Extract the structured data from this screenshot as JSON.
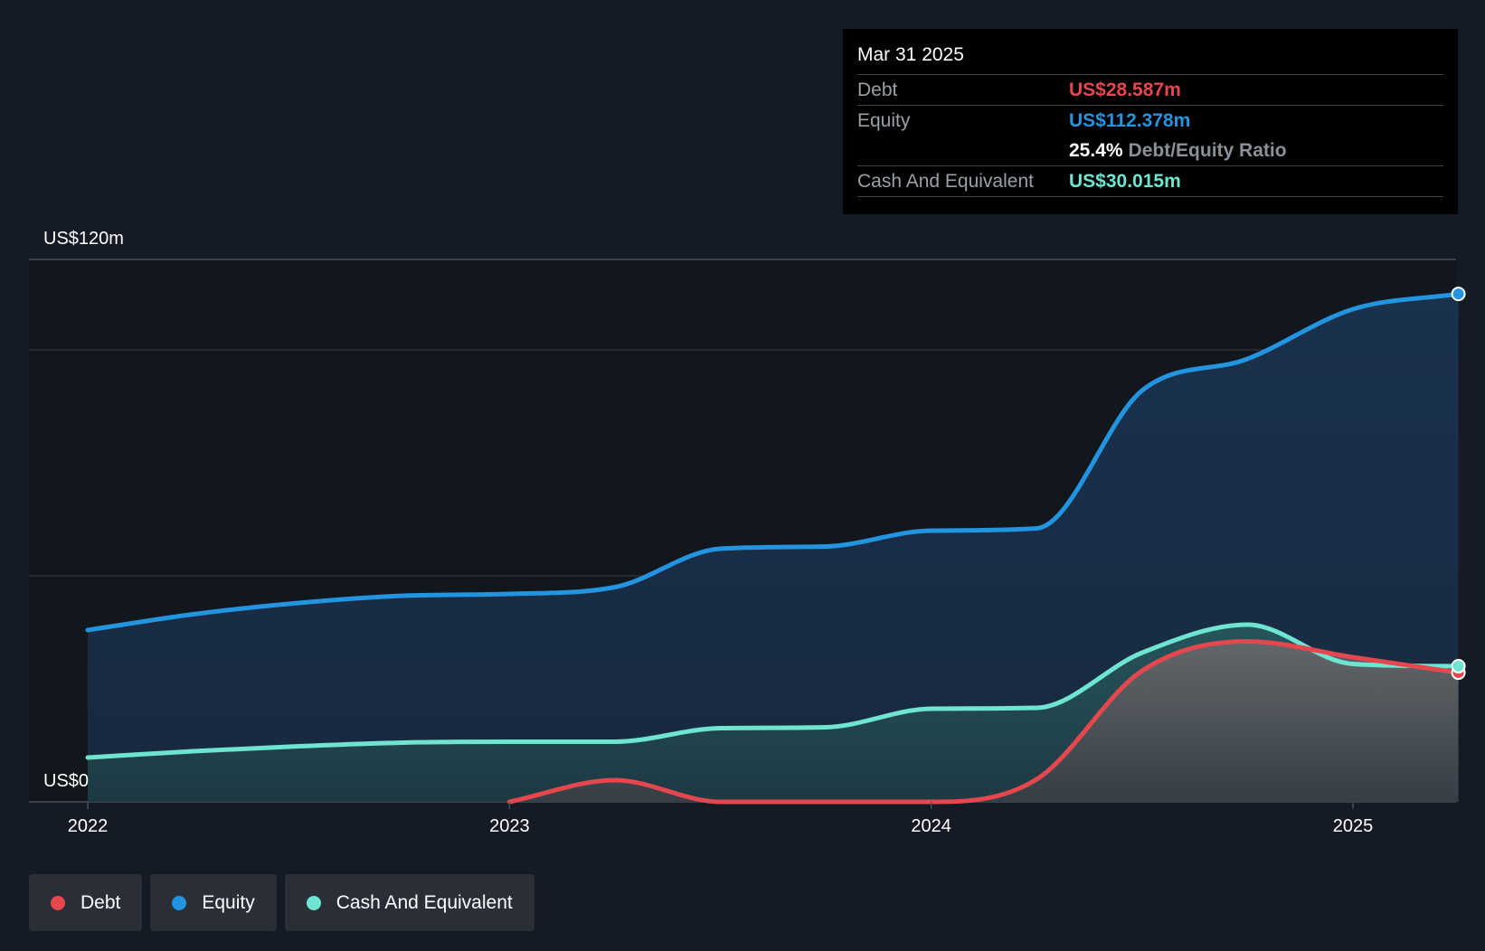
{
  "tooltip": {
    "date": "Mar 31 2025",
    "debt_label": "Debt",
    "debt_value": "US$28.587m",
    "equity_label": "Equity",
    "equity_value": "US$112.378m",
    "ratio_pct": "25.4%",
    "ratio_label": "Debt/Equity Ratio",
    "cash_label": "Cash And Equivalent",
    "cash_value": "US$30.015m"
  },
  "legend": {
    "debt": "Debt",
    "equity": "Equity",
    "cash": "Cash And Equivalent"
  },
  "colors": {
    "debt": "#e5474e",
    "equity": "#2394df",
    "cash": "#6ee4d1",
    "background": "#151b24"
  },
  "chart_data": {
    "type": "area",
    "y_top_label": "US$120m",
    "y_bottom_label": "US$0",
    "ylim": [
      0,
      120
    ],
    "y_gridlines": [
      0,
      50,
      100,
      120
    ],
    "x_ticks": [
      {
        "label": "2022",
        "value": 2022.0
      },
      {
        "label": "2023",
        "value": 2023.0
      },
      {
        "label": "2024",
        "value": 2024.0
      },
      {
        "label": "2025",
        "value": 2025.0
      }
    ],
    "x_range": [
      2021.86,
      2025.25
    ],
    "series": [
      {
        "name": "Equity",
        "color": "#2394df",
        "points": [
          [
            2022.0,
            38.0
          ],
          [
            2022.25,
            41.5
          ],
          [
            2022.5,
            44.0
          ],
          [
            2022.75,
            45.6
          ],
          [
            2023.0,
            46.0
          ],
          [
            2023.25,
            47.5
          ],
          [
            2023.5,
            56.0
          ],
          [
            2023.75,
            56.5
          ],
          [
            2024.0,
            60.0
          ],
          [
            2024.25,
            60.5
          ],
          [
            2024.5,
            91.0
          ],
          [
            2024.75,
            98.0
          ],
          [
            2025.0,
            109.0
          ],
          [
            2025.25,
            112.378
          ]
        ]
      },
      {
        "name": "Cash And Equivalent",
        "color": "#6ee4d1",
        "points": [
          [
            2022.0,
            9.8
          ],
          [
            2022.25,
            11.2
          ],
          [
            2022.5,
            12.3
          ],
          [
            2022.75,
            13.1
          ],
          [
            2023.0,
            13.3
          ],
          [
            2023.25,
            13.3
          ],
          [
            2023.5,
            16.3
          ],
          [
            2023.75,
            16.5
          ],
          [
            2024.0,
            20.6
          ],
          [
            2024.25,
            20.8
          ],
          [
            2024.5,
            33.0
          ],
          [
            2024.75,
            39.2
          ],
          [
            2025.0,
            30.5
          ],
          [
            2025.25,
            30.015
          ]
        ]
      },
      {
        "name": "Debt",
        "color": "#e5474e",
        "points": [
          [
            2023.0,
            0.0
          ],
          [
            2023.25,
            4.8
          ],
          [
            2023.5,
            0.0
          ],
          [
            2023.75,
            0.0
          ],
          [
            2024.0,
            0.0
          ],
          [
            2024.25,
            5.0
          ],
          [
            2024.5,
            29.0
          ],
          [
            2024.75,
            35.5
          ],
          [
            2025.0,
            32.0
          ],
          [
            2025.25,
            28.587
          ]
        ]
      }
    ]
  }
}
